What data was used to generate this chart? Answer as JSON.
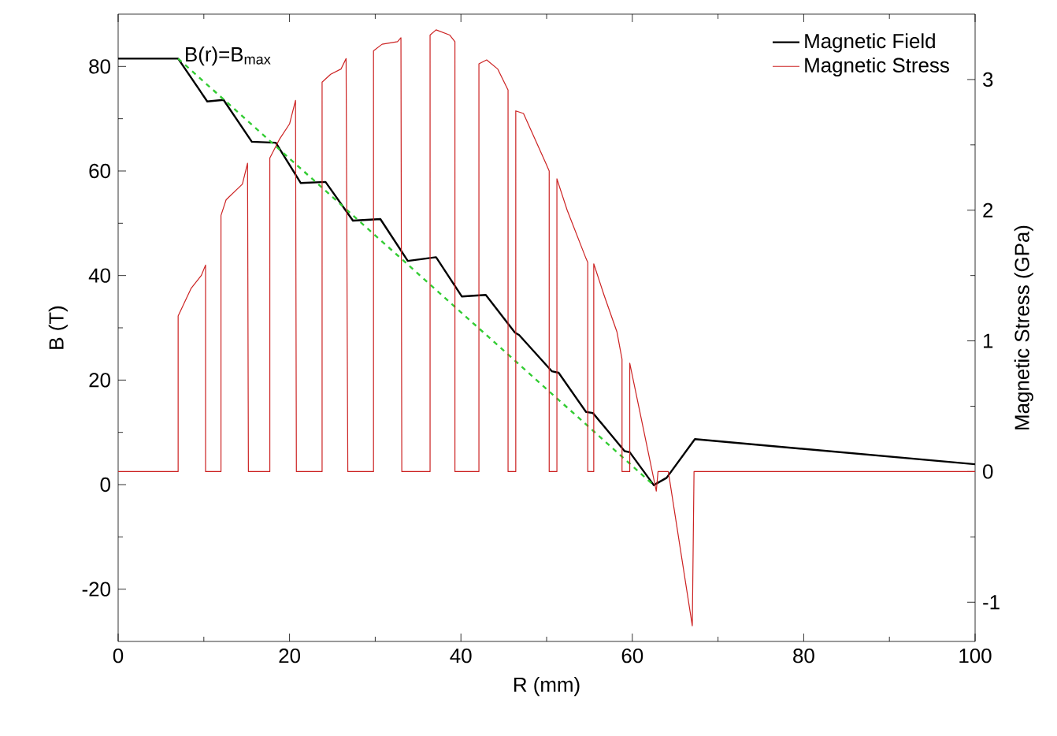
{
  "chart_data": {
    "type": "line",
    "xlabel": "R (mm)",
    "ylabel": "B (T)",
    "y2label": "Magnetic Stress (GPa)",
    "xlim": [
      0,
      100
    ],
    "xticks": [
      0,
      20,
      40,
      60,
      80,
      100
    ],
    "ylim": [
      -30,
      90
    ],
    "yticks": [
      -20,
      0,
      20,
      40,
      60,
      80
    ],
    "y2lim": [
      -1.3,
      3.5
    ],
    "y2ticks": [
      -1,
      0,
      1,
      2,
      3
    ],
    "legend": "top right",
    "grid": false,
    "marker": "none",
    "annotations": [
      "B(r)=B$_{max}$"
    ],
    "series": [
      {
        "name": "Magnetic Field",
        "color": "#000000",
        "x": [
          0,
          7.0,
          10.4,
          12.3,
          15.6,
          18.4,
          21.3,
          24.2,
          27.4,
          30.6,
          33.8,
          37.1,
          40.1,
          42.9,
          46.3,
          46.8,
          50.6,
          51.4,
          54.6,
          55.4,
          59.1,
          59.7,
          62.5,
          64.0,
          67.3,
          100
        ],
        "values": [
          81.5,
          81.5,
          73.3,
          73.6,
          65.6,
          65.4,
          57.7,
          57.9,
          50.5,
          50.8,
          42.8,
          43.5,
          36.0,
          36.3,
          29.1,
          28.6,
          21.7,
          21.4,
          13.9,
          13.7,
          6.4,
          6.2,
          -0.1,
          1.3,
          8.7,
          3.9
        ]
      },
      {
        "name": "Magnetic Stress",
        "color": "#cc2222",
        "axis": "y2",
        "x": [
          0,
          7.0,
          7.0,
          8.5,
          9.7,
          10.2,
          10.2,
          12.0,
          12.0,
          12.6,
          14.5,
          15.1,
          15.2,
          17.7,
          17.7,
          18.8,
          20.0,
          20.7,
          20.8,
          23.8,
          23.8,
          24.8,
          26.0,
          26.6,
          26.8,
          29.8,
          29.8,
          30.8,
          32.6,
          33.0,
          33.1,
          36.4,
          36.4,
          37.1,
          38.7,
          39.3,
          39.3,
          42.1,
          42.1,
          43.0,
          44.3,
          45.5,
          45.5,
          46.4,
          46.4,
          47.3,
          49.9,
          50.3,
          50.3,
          51.2,
          51.2,
          52.4,
          54.6,
          54.8,
          54.8,
          55.5,
          55.5,
          56.7,
          58.2,
          58.8,
          58.8,
          59.7,
          59.7,
          62.8,
          63.0,
          64.2,
          67.0,
          67.2,
          100
        ],
        "values": [
          0,
          0,
          1.19,
          1.4,
          1.5,
          1.58,
          0,
          0,
          1.96,
          2.08,
          2.2,
          2.36,
          0,
          0,
          2.4,
          2.54,
          2.66,
          2.84,
          0,
          0,
          2.98,
          3.04,
          3.08,
          3.16,
          0,
          0,
          3.22,
          3.27,
          3.29,
          3.32,
          0,
          0,
          3.34,
          3.38,
          3.34,
          3.29,
          0,
          0,
          3.12,
          3.15,
          3.08,
          2.92,
          0,
          0,
          2.76,
          2.74,
          2.36,
          2.3,
          0,
          0,
          2.24,
          2.0,
          1.63,
          1.6,
          0,
          0,
          1.59,
          1.35,
          1.07,
          0.86,
          0,
          0,
          0.83,
          -0.15,
          0,
          0,
          -1.18,
          0,
          0
        ]
      },
      {
        "color": "#33cc33",
        "line_style": "dashed",
        "x": [
          7.0,
          62.5
        ],
        "values": [
          81.5,
          -0.1
        ]
      }
    ]
  }
}
